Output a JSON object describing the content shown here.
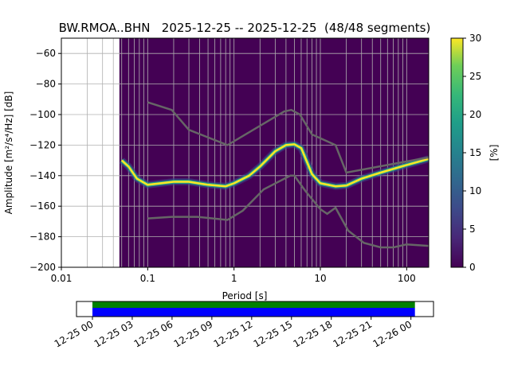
{
  "chart_data": {
    "type": "heatmap",
    "title": "BW.RMOA..BHN   2025-12-25 -- 2025-12-25  (48/48 segments)",
    "xlabel": "Period [s]",
    "ylabel": "Amplitude [m²/s⁴/Hz] [dB]",
    "xscale": "log",
    "xlim": [
      0.01,
      180
    ],
    "ylim": [
      -200,
      -50
    ],
    "xticks": [
      {
        "v": 0.01,
        "label": "0.01"
      },
      {
        "v": 0.1,
        "label": "0.1"
      },
      {
        "v": 1,
        "label": "1"
      },
      {
        "v": 10,
        "label": "10"
      },
      {
        "v": 100,
        "label": "100"
      }
    ],
    "yticks": [
      {
        "v": -60,
        "label": "−60"
      },
      {
        "v": -80,
        "label": "−80"
      },
      {
        "v": -100,
        "label": "−100"
      },
      {
        "v": -120,
        "label": "−120"
      },
      {
        "v": -140,
        "label": "−140"
      },
      {
        "v": -160,
        "label": "−160"
      },
      {
        "v": -180,
        "label": "−180"
      },
      {
        "v": -200,
        "label": "−200"
      }
    ],
    "grid": true,
    "data_period_start": 0.047,
    "mode_line": [
      [
        0.05,
        -130
      ],
      [
        0.06,
        -134
      ],
      [
        0.075,
        -142
      ],
      [
        0.1,
        -146
      ],
      [
        0.2,
        -144
      ],
      [
        0.3,
        -144
      ],
      [
        0.5,
        -146
      ],
      [
        0.8,
        -147
      ],
      [
        1,
        -145
      ],
      [
        1.5,
        -140
      ],
      [
        2,
        -134
      ],
      [
        3,
        -124
      ],
      [
        4,
        -120
      ],
      [
        5,
        -119.5
      ],
      [
        6,
        -122
      ],
      [
        7,
        -131
      ],
      [
        8,
        -139
      ],
      [
        10,
        -145
      ],
      [
        15,
        -147
      ],
      [
        20,
        -146.5
      ],
      [
        30,
        -142
      ],
      [
        50,
        -138
      ],
      [
        100,
        -133
      ],
      [
        180,
        -129
      ]
    ],
    "nhnm": [
      [
        0.1,
        -92
      ],
      [
        0.19,
        -97
      ],
      [
        0.3,
        -110
      ],
      [
        0.84,
        -120
      ],
      [
        3.8,
        -98
      ],
      [
        4.6,
        -97
      ],
      [
        5.8,
        -100
      ],
      [
        8,
        -113
      ],
      [
        15,
        -120
      ],
      [
        20,
        -138
      ],
      [
        180,
        -128
      ]
    ],
    "nlnm": [
      [
        0.1,
        -168
      ],
      [
        0.19,
        -167
      ],
      [
        0.38,
        -167
      ],
      [
        0.84,
        -169
      ],
      [
        1.26,
        -163
      ],
      [
        2.2,
        -149
      ],
      [
        4.5,
        -140
      ],
      [
        5,
        -140
      ],
      [
        6.7,
        -150
      ],
      [
        10,
        -162
      ],
      [
        12,
        -165
      ],
      [
        15,
        -161
      ],
      [
        21,
        -176
      ],
      [
        32,
        -184
      ],
      [
        50,
        -187
      ],
      [
        70,
        -187
      ],
      [
        100,
        -185
      ],
      [
        180,
        -186
      ]
    ],
    "colorbar": {
      "label": "[%]",
      "min": 0,
      "max": 30,
      "ticks": [
        "0",
        "5",
        "10",
        "15",
        "20",
        "25",
        "30"
      ],
      "colormap": "viridis"
    },
    "timeline": {
      "ticks": [
        "12-25 00",
        "12-25 03",
        "12-25 06",
        "12-25 09",
        "12-25 12",
        "12-25 15",
        "12-25 18",
        "12-25 21",
        "12-26 00"
      ],
      "coverage_start_hour": 0,
      "coverage_end_hour": 24.3,
      "axis_range_hours": [
        -1.2,
        25.7
      ],
      "colors": {
        "top": "#008000",
        "bottom": "#0000ff"
      }
    },
    "colors": {
      "background": "#440154",
      "noise_models": "#666666",
      "mode": "#fde725",
      "grid": "#b0b0b0"
    }
  }
}
